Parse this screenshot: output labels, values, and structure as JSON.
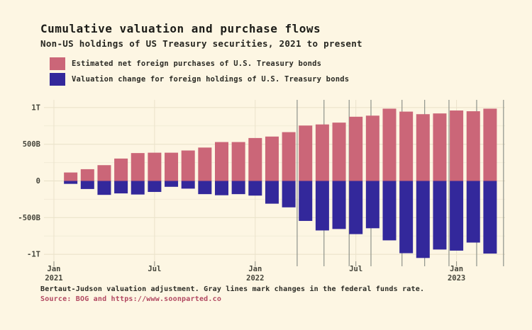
{
  "page": {
    "title": "Cumulative valuation and purchase flows",
    "subtitle": "Non-US holdings of US Treasury securities, 2021 to present",
    "caption": "Bertaut-Judson valuation adjustment. Gray lines mark changes in the federal funds rate.",
    "source": "Source: BOG and https://www.soonparted.co"
  },
  "legend": [
    {
      "label": "Estimated net foreign purchases of U.S. Treasury bonds",
      "color": "#cb6678"
    },
    {
      "label": "Valuation change for foreign holdings of U.S. Treasury bonds",
      "color": "#33289b"
    }
  ],
  "colors": {
    "background": "#fdf6e3",
    "grid_major": "#e8e0c7",
    "grid_minor": "#f2ebd6",
    "fed_line": "#8e938b",
    "axis_text": "#45453b",
    "source_text": "#b24861"
  },
  "chart_data": {
    "type": "bar",
    "variant": "diverging-stacked-monthly",
    "title": "Cumulative valuation and purchase flows",
    "xlabel": "",
    "ylabel": "",
    "unit": "billions of USD",
    "ylim": [
      -1100,
      1100
    ],
    "grid": true,
    "legend_position": "top-left",
    "categories": [
      "2021-02",
      "2021-03",
      "2021-04",
      "2021-05",
      "2021-06",
      "2021-07",
      "2021-08",
      "2021-09",
      "2021-10",
      "2021-11",
      "2021-12",
      "2022-01",
      "2022-02",
      "2022-03",
      "2022-04",
      "2022-05",
      "2022-06",
      "2022-07",
      "2022-08",
      "2022-09",
      "2022-10",
      "2022-11",
      "2022-12",
      "2023-01",
      "2023-02",
      "2023-03"
    ],
    "series": [
      {
        "name": "Estimated net foreign purchases of U.S. Treasury bonds",
        "color": "#cb6678",
        "values": [
          115,
          160,
          215,
          305,
          380,
          385,
          385,
          415,
          455,
          530,
          530,
          585,
          605,
          665,
          755,
          770,
          795,
          875,
          890,
          985,
          945,
          910,
          920,
          960,
          950,
          985
        ]
      },
      {
        "name": "Valuation change for foreign holdings of U.S. Treasury bonds",
        "color": "#33289b",
        "values": [
          -40,
          -110,
          -190,
          -170,
          -185,
          -150,
          -80,
          -105,
          -180,
          -195,
          -180,
          -200,
          -310,
          -360,
          -545,
          -675,
          -655,
          -725,
          -645,
          -810,
          -985,
          -1050,
          -935,
          -950,
          -840,
          -990
        ]
      }
    ],
    "yticks": [
      {
        "value": 1000,
        "label": "1T"
      },
      {
        "value": 500,
        "label": "500B"
      },
      {
        "value": 0,
        "label": "0"
      },
      {
        "value": -500,
        "label": "-500B"
      },
      {
        "value": -1000,
        "label": "-1T"
      }
    ],
    "yticks_minor": [
      750,
      250,
      -250,
      -750
    ],
    "xticks": [
      {
        "month_index": 0,
        "line1": "Jan",
        "line2": "2021"
      },
      {
        "month_index": 6,
        "line1": "Jul",
        "line2": ""
      },
      {
        "month_index": 12,
        "line1": "Jan",
        "line2": "2022"
      },
      {
        "month_index": 18,
        "line1": "Jul",
        "line2": ""
      },
      {
        "month_index": 24,
        "line1": "Jan",
        "line2": "2023"
      }
    ],
    "fed_rate_change_months_from_jan2021": [
      14.5,
      16.1,
      17.6,
      18.9,
      20.75,
      22.1,
      23.55,
      25.2,
      26.8
    ]
  }
}
